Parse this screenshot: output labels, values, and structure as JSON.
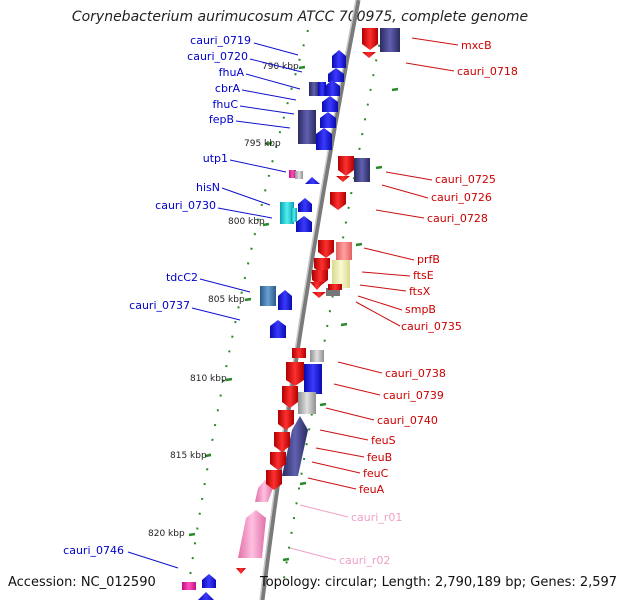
{
  "title": "Corynebacterium aurimucosum ATCC 700975, complete genome",
  "accession": "Accession: NC_012590",
  "topology": "Topology: circular; Length: 2,790,189 bp; Genes: 2,597",
  "ticks": [
    "790 kbp",
    "795 kbp",
    "800 kbp",
    "805 kbp",
    "810 kbp",
    "815 kbp",
    "820 kbp"
  ],
  "left_labels": [
    "cauri_0719",
    "cauri_0720",
    "fhuA",
    "cbrA",
    "fhuC",
    "fepB",
    "utp1",
    "hisN",
    "cauri_0730",
    "tdcC2",
    "cauri_0737",
    "cauri_0746"
  ],
  "right_labels": [
    "mxcB",
    "cauri_0718",
    "cauri_0725",
    "cauri_0726",
    "cauri_0728",
    "prfB",
    "ftsE",
    "ftsX",
    "smpB",
    "cauri_0735",
    "cauri_0738",
    "cauri_0739",
    "cauri_0740",
    "feuS",
    "feuB",
    "feuC",
    "feuA",
    "cauri_r01",
    "cauri_r02"
  ],
  "colors": {
    "forward": "#1010e0",
    "reverse": "#e01010",
    "label_left": "#0000cc",
    "label_right": "#cc0000",
    "rna": "#f0a0c8",
    "backbone": "#888888",
    "tick_green": "#2a8a2a"
  }
}
